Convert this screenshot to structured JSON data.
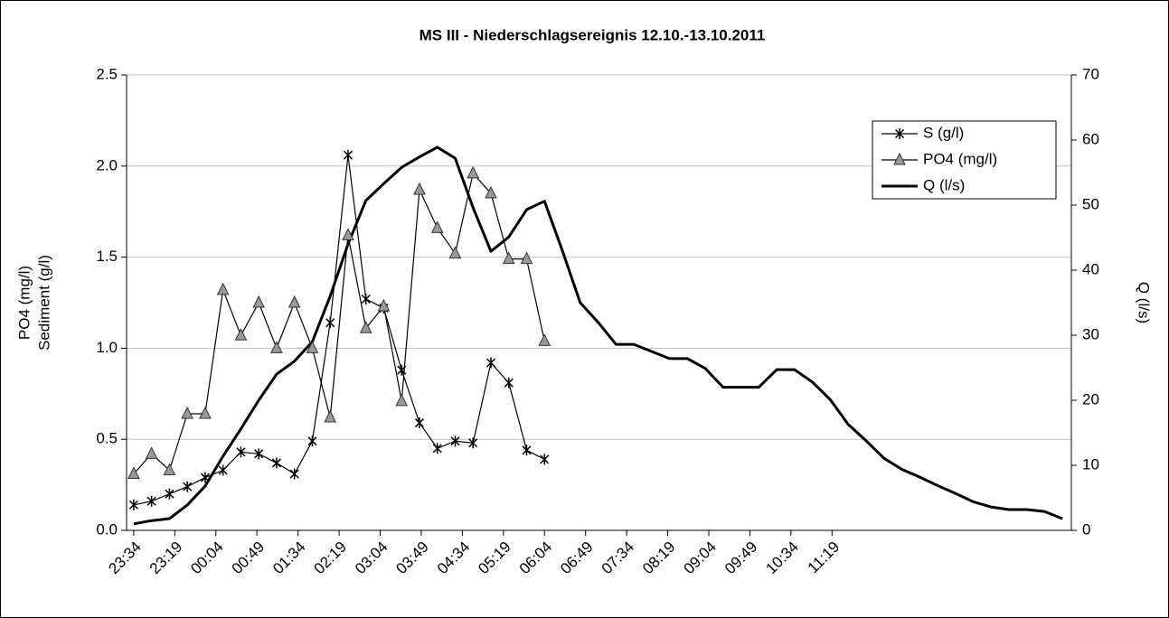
{
  "chart_data": {
    "type": "line",
    "title": "MS III - Niederschlagsereignis 12.10.-13.10.2011",
    "ylabel": [
      "PO4 (mg/l)",
      "Sediment (g/l)"
    ],
    "y2label": "Q (l/s)",
    "xlim": [
      -8,
      1050
    ],
    "xticks": [
      {
        "value": 0,
        "label": "23:34"
      },
      {
        "value": 46,
        "label": "23:19"
      },
      {
        "value": 92,
        "label": "00:04"
      },
      {
        "value": 138,
        "label": "00:49"
      },
      {
        "value": 184,
        "label": "01:34"
      },
      {
        "value": 230,
        "label": "02:19"
      },
      {
        "value": 276,
        "label": "03:04"
      },
      {
        "value": 322,
        "label": "03:49"
      },
      {
        "value": 368,
        "label": "04:34"
      },
      {
        "value": 414,
        "label": "05:19"
      },
      {
        "value": 460,
        "label": "06:04"
      },
      {
        "value": 506,
        "label": "06:49"
      },
      {
        "value": 552,
        "label": "07:34"
      },
      {
        "value": 598,
        "label": "08:19"
      },
      {
        "value": 644,
        "label": "09:04"
      },
      {
        "value": 690,
        "label": "09:49"
      },
      {
        "value": 736,
        "label": "10:34"
      },
      {
        "value": 782,
        "label": "11:19"
      }
    ],
    "ylim": [
      0,
      2.5
    ],
    "yticks": [
      {
        "value": 0,
        "label": "0.0"
      },
      {
        "value": 0.5,
        "label": "0.5"
      },
      {
        "value": 1,
        "label": "1.0"
      },
      {
        "value": 1.5,
        "label": "1.5"
      },
      {
        "value": 2,
        "label": "2.0"
      },
      {
        "value": 2.5,
        "label": "2.5"
      }
    ],
    "y2lim": [
      0,
      70
    ],
    "y2ticks": [
      0,
      10,
      20,
      30,
      40,
      50,
      60,
      70
    ],
    "grid": true,
    "legend": "upper right",
    "series": [
      {
        "name": "S (g/l)",
        "color": "#000000",
        "marker": "star",
        "x": [
          0,
          20,
          40,
          60,
          80,
          100,
          120,
          140,
          160,
          180,
          200,
          220,
          240,
          260,
          280,
          300,
          320,
          340,
          360,
          380,
          400,
          420,
          440,
          460
        ],
        "values": [
          0.14,
          0.16,
          0.2,
          0.24,
          0.29,
          0.33,
          0.43,
          0.42,
          0.37,
          0.31,
          0.49,
          1.14,
          2.06,
          1.27,
          1.22,
          0.88,
          0.59,
          0.45,
          0.49,
          0.48,
          0.92,
          0.81,
          0.44,
          0.39
        ]
      },
      {
        "name": "PO4 (mg/l)",
        "color": "#999999",
        "marker": "triangle",
        "x": [
          0,
          20,
          40,
          60,
          80,
          100,
          120,
          140,
          160,
          180,
          200,
          220,
          240,
          260,
          280,
          300,
          320,
          340,
          360,
          380,
          400,
          420,
          440,
          460
        ],
        "values": [
          0.31,
          0.42,
          0.33,
          0.64,
          0.64,
          1.32,
          1.07,
          1.25,
          1.0,
          1.25,
          1.0,
          0.62,
          1.62,
          1.11,
          1.23,
          0.71,
          1.87,
          1.66,
          1.52,
          1.96,
          1.85,
          1.49,
          1.49,
          1.04
        ]
      },
      {
        "name": "Q (l/s)",
        "color": "#000000",
        "axis": "y2",
        "x": [
          0,
          20,
          40,
          60,
          80,
          100,
          120,
          140,
          160,
          180,
          200,
          220,
          240,
          260,
          280,
          300,
          320,
          340,
          360,
          380,
          400,
          420,
          440,
          460,
          480,
          500,
          520,
          540,
          560,
          580,
          600,
          620,
          640,
          660,
          680,
          700,
          720,
          740,
          760,
          780,
          800,
          820,
          840,
          860,
          880,
          900,
          920,
          940,
          960,
          980,
          1000,
          1020,
          1040
        ],
        "values": [
          1,
          1.5,
          1.8,
          3.9,
          6.8,
          11.4,
          15.6,
          20,
          24,
          26,
          29,
          36,
          44,
          50.7,
          53.3,
          55.8,
          57.4,
          58.9,
          57.2,
          49.6,
          42.9,
          45.1,
          49.3,
          50.6,
          43,
          35,
          32,
          28.6,
          28.6,
          27.5,
          26.4,
          26.4,
          24.9,
          22,
          22,
          22,
          24.7,
          24.7,
          22.8,
          20.1,
          16.3,
          13.8,
          11.1,
          9.4,
          8.2,
          6.9,
          5.7,
          4.4,
          3.6,
          3.2,
          3.2,
          2.9,
          1.8
        ]
      }
    ]
  }
}
